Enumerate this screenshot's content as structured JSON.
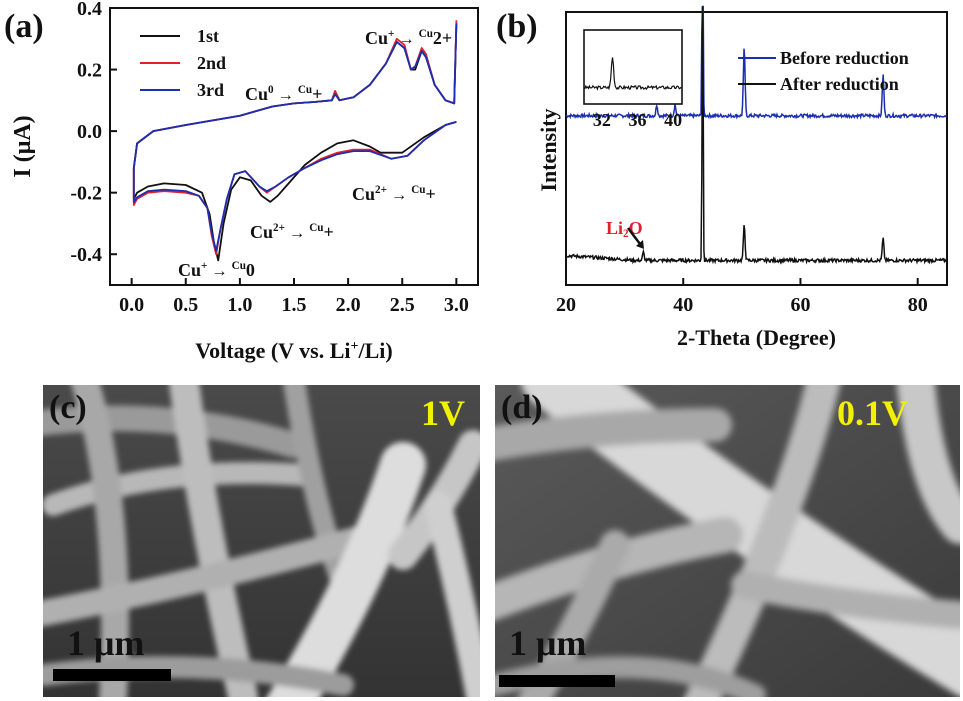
{
  "panels": {
    "a": "(a)",
    "b": "(b)",
    "c": "(c)",
    "d": "(d)"
  },
  "chart_data": [
    {
      "id": "a",
      "type": "line",
      "xlabel": "Voltage (V vs. Li⁺/Li)",
      "xlabel_parts": [
        "Voltage (V vs. Li",
        "+",
        "/Li)"
      ],
      "ylabel": "I (μA)",
      "xlim": [
        -0.2,
        3.2
      ],
      "ylim": [
        -0.5,
        0.4
      ],
      "xticks": [
        "0.0",
        "0.5",
        "1.0",
        "1.5",
        "2.0",
        "2.5",
        "3.0"
      ],
      "xtick_values": [
        0,
        0.5,
        1,
        1.5,
        2,
        2.5,
        3
      ],
      "yticks": [
        "-0.4",
        "-0.2",
        "0.0",
        "0.2",
        "0.4"
      ],
      "ytick_values": [
        -0.4,
        -0.2,
        0,
        0.2,
        0.4
      ],
      "legend_position": "top-left",
      "series": [
        {
          "name": "1st",
          "color": "#111111",
          "points": [
            [
              3.0,
              0.03
            ],
            [
              2.9,
              0.02
            ],
            [
              2.7,
              -0.02
            ],
            [
              2.5,
              -0.07
            ],
            [
              2.3,
              -0.07
            ],
            [
              2.2,
              -0.05
            ],
            [
              2.05,
              -0.03
            ],
            [
              1.9,
              -0.04
            ],
            [
              1.75,
              -0.07
            ],
            [
              1.6,
              -0.11
            ],
            [
              1.45,
              -0.17
            ],
            [
              1.35,
              -0.21
            ],
            [
              1.28,
              -0.23
            ],
            [
              1.2,
              -0.21
            ],
            [
              1.1,
              -0.16
            ],
            [
              1.0,
              -0.15
            ],
            [
              0.92,
              -0.19
            ],
            [
              0.85,
              -0.3
            ],
            [
              0.8,
              -0.42
            ],
            [
              0.76,
              -0.36
            ],
            [
              0.72,
              -0.27
            ],
            [
              0.65,
              -0.2
            ],
            [
              0.5,
              -0.175
            ],
            [
              0.3,
              -0.17
            ],
            [
              0.15,
              -0.18
            ],
            [
              0.05,
              -0.2
            ],
            [
              0.02,
              -0.22
            ],
            [
              0.02,
              -0.12
            ],
            [
              0.05,
              -0.04
            ],
            [
              0.2,
              0.0
            ],
            [
              0.5,
              0.02
            ],
            [
              1.0,
              0.05
            ],
            [
              1.3,
              0.08
            ],
            [
              1.5,
              0.09
            ],
            [
              1.7,
              0.095
            ],
            [
              1.85,
              0.1
            ],
            [
              1.88,
              0.13
            ],
            [
              1.92,
              0.1
            ],
            [
              2.05,
              0.11
            ],
            [
              2.2,
              0.15
            ],
            [
              2.35,
              0.22
            ],
            [
              2.45,
              0.29
            ],
            [
              2.52,
              0.27
            ],
            [
              2.58,
              0.2
            ],
            [
              2.62,
              0.2
            ],
            [
              2.68,
              0.26
            ],
            [
              2.72,
              0.24
            ],
            [
              2.8,
              0.15
            ],
            [
              2.9,
              0.1
            ],
            [
              2.98,
              0.09
            ],
            [
              3.0,
              0.35
            ]
          ]
        },
        {
          "name": "2nd",
          "color": "#e0202a",
          "points": [
            [
              3.0,
              0.03
            ],
            [
              2.9,
              0.02
            ],
            [
              2.7,
              -0.03
            ],
            [
              2.55,
              -0.08
            ],
            [
              2.4,
              -0.09
            ],
            [
              2.2,
              -0.06
            ],
            [
              2.05,
              -0.06
            ],
            [
              1.9,
              -0.07
            ],
            [
              1.75,
              -0.09
            ],
            [
              1.6,
              -0.12
            ],
            [
              1.45,
              -0.15
            ],
            [
              1.33,
              -0.18
            ],
            [
              1.25,
              -0.2
            ],
            [
              1.18,
              -0.18
            ],
            [
              1.05,
              -0.13
            ],
            [
              0.95,
              -0.14
            ],
            [
              0.88,
              -0.22
            ],
            [
              0.82,
              -0.32
            ],
            [
              0.78,
              -0.4
            ],
            [
              0.74,
              -0.34
            ],
            [
              0.7,
              -0.25
            ],
            [
              0.62,
              -0.21
            ],
            [
              0.5,
              -0.2
            ],
            [
              0.3,
              -0.195
            ],
            [
              0.15,
              -0.2
            ],
            [
              0.05,
              -0.22
            ],
            [
              0.02,
              -0.24
            ],
            [
              0.02,
              -0.12
            ],
            [
              0.05,
              -0.04
            ],
            [
              0.2,
              0.0
            ],
            [
              0.5,
              0.02
            ],
            [
              1.0,
              0.05
            ],
            [
              1.3,
              0.08
            ],
            [
              1.5,
              0.09
            ],
            [
              1.7,
              0.095
            ],
            [
              1.85,
              0.1
            ],
            [
              1.88,
              0.13
            ],
            [
              1.92,
              0.1
            ],
            [
              2.05,
              0.11
            ],
            [
              2.2,
              0.15
            ],
            [
              2.35,
              0.22
            ],
            [
              2.45,
              0.3
            ],
            [
              2.52,
              0.28
            ],
            [
              2.58,
              0.2
            ],
            [
              2.62,
              0.21
            ],
            [
              2.68,
              0.27
            ],
            [
              2.72,
              0.25
            ],
            [
              2.8,
              0.15
            ],
            [
              2.9,
              0.1
            ],
            [
              2.98,
              0.09
            ],
            [
              3.0,
              0.36
            ]
          ]
        },
        {
          "name": "3rd",
          "color": "#1c2fb0",
          "points": [
            [
              3.0,
              0.03
            ],
            [
              2.9,
              0.02
            ],
            [
              2.7,
              -0.03
            ],
            [
              2.55,
              -0.08
            ],
            [
              2.4,
              -0.09
            ],
            [
              2.2,
              -0.065
            ],
            [
              2.05,
              -0.065
            ],
            [
              1.9,
              -0.075
            ],
            [
              1.75,
              -0.095
            ],
            [
              1.6,
              -0.12
            ],
            [
              1.45,
              -0.15
            ],
            [
              1.33,
              -0.18
            ],
            [
              1.25,
              -0.195
            ],
            [
              1.18,
              -0.18
            ],
            [
              1.05,
              -0.13
            ],
            [
              0.95,
              -0.14
            ],
            [
              0.88,
              -0.22
            ],
            [
              0.82,
              -0.32
            ],
            [
              0.78,
              -0.39
            ],
            [
              0.74,
              -0.33
            ],
            [
              0.7,
              -0.25
            ],
            [
              0.62,
              -0.21
            ],
            [
              0.5,
              -0.195
            ],
            [
              0.3,
              -0.19
            ],
            [
              0.15,
              -0.195
            ],
            [
              0.05,
              -0.215
            ],
            [
              0.02,
              -0.23
            ],
            [
              0.02,
              -0.12
            ],
            [
              0.05,
              -0.04
            ],
            [
              0.2,
              0.0
            ],
            [
              0.5,
              0.02
            ],
            [
              1.0,
              0.05
            ],
            [
              1.3,
              0.08
            ],
            [
              1.5,
              0.09
            ],
            [
              1.7,
              0.095
            ],
            [
              1.85,
              0.1
            ],
            [
              1.88,
              0.12
            ],
            [
              1.92,
              0.1
            ],
            [
              2.05,
              0.11
            ],
            [
              2.2,
              0.15
            ],
            [
              2.35,
              0.22
            ],
            [
              2.45,
              0.29
            ],
            [
              2.52,
              0.27
            ],
            [
              2.58,
              0.2
            ],
            [
              2.62,
              0.21
            ],
            [
              2.68,
              0.26
            ],
            [
              2.72,
              0.24
            ],
            [
              2.8,
              0.15
            ],
            [
              2.9,
              0.1
            ],
            [
              2.98,
              0.09
            ],
            [
              3.0,
              0.35
            ]
          ]
        }
      ],
      "annotations": [
        {
          "parts": [
            "Cu",
            "+",
            "→",
            "Cu",
            "2+"
          ],
          "x": 2.55,
          "y": 0.33
        },
        {
          "parts": [
            "Cu",
            "0",
            "→",
            "Cu",
            "+"
          ],
          "x": 1.6,
          "y": 0.13
        },
        {
          "parts": [
            "Cu",
            "2+",
            "→",
            "Cu",
            "+"
          ],
          "x": 2.6,
          "y": -0.2
        },
        {
          "parts": [
            "Cu",
            "2+",
            "→",
            "Cu",
            "+"
          ],
          "x": 1.7,
          "y": -0.34
        },
        {
          "parts": [
            "Cu",
            "+",
            "→",
            "Cu",
            "0"
          ],
          "x": 0.85,
          "y": -0.48
        }
      ]
    },
    {
      "id": "b",
      "type": "line",
      "xlabel": "2-Theta (Degree)",
      "ylabel": "Intensity",
      "xlim": [
        20,
        85
      ],
      "xticks": [
        "20",
        "40",
        "60",
        "80"
      ],
      "xtick_values": [
        20,
        40,
        60,
        80
      ],
      "legend_position": "top-right",
      "series": [
        {
          "name": "Before reduction",
          "color": "#1c2fb0",
          "baseline": 0.62,
          "peaks": [
            [
              35.5,
              0.04
            ],
            [
              38.6,
              0.04
            ],
            [
              43.3,
              1.2
            ],
            [
              50.4,
              0.25
            ],
            [
              74.1,
              0.15
            ]
          ]
        },
        {
          "name": "After reduction",
          "color": "#111111",
          "baseline": 0.09,
          "peaks": [
            [
              33.2,
              0.03
            ],
            [
              43.3,
              1.2
            ],
            [
              50.4,
              0.13
            ],
            [
              74.1,
              0.08
            ]
          ]
        }
      ],
      "annotations": [
        {
          "parts": [
            "Li",
            "2",
            "O"
          ],
          "color": "#e0202a"
        }
      ],
      "inset": {
        "xlim": [
          30,
          41
        ],
        "xticks": [
          "32",
          "36",
          "40"
        ],
        "xtick_values": [
          32,
          36,
          40
        ],
        "peak_x": 33.2
      }
    }
  ],
  "sem": {
    "c": {
      "label": "1V",
      "scale": "1 μm"
    },
    "d": {
      "label": "0.1V",
      "scale": "1 μm"
    }
  }
}
